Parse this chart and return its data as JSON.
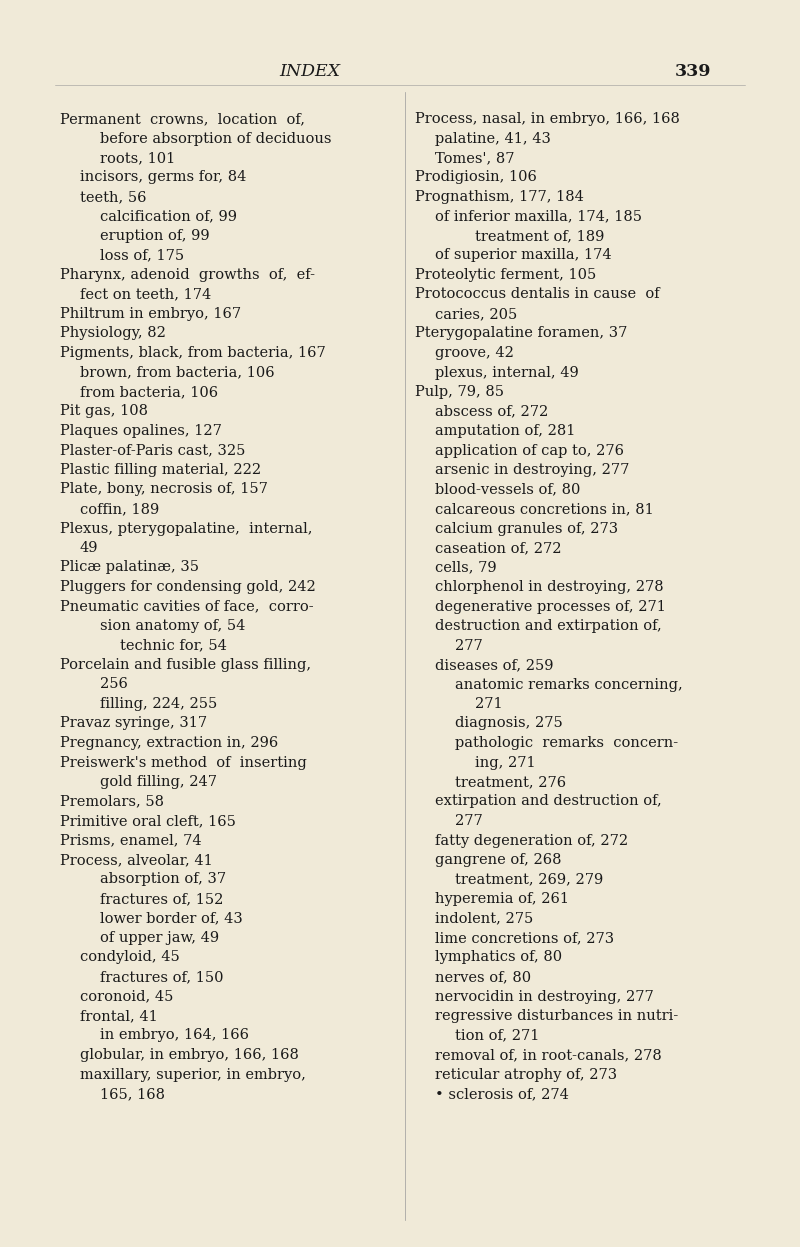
{
  "background_color": "#f0ead8",
  "title": "INDEX",
  "page_number": "339",
  "title_fontsize": 12.5,
  "body_fontsize": 10.5,
  "left_lines": [
    {
      "text": "Permanent  crowns,  location  of,",
      "indent": 0
    },
    {
      "text": "before absorption of deciduous",
      "indent": 2
    },
    {
      "text": "roots, 101",
      "indent": 2
    },
    {
      "text": "incisors, germs for, 84",
      "indent": 1
    },
    {
      "text": "teeth, 56",
      "indent": 1
    },
    {
      "text": "calcification of, 99",
      "indent": 2
    },
    {
      "text": "eruption of, 99",
      "indent": 2
    },
    {
      "text": "loss of, 175",
      "indent": 2
    },
    {
      "text": "Pharynx, adenoid  growths  of,  ef-",
      "indent": 0
    },
    {
      "text": "fect on teeth, 174",
      "indent": 1
    },
    {
      "text": "Philtrum in embryo, 167",
      "indent": 0
    },
    {
      "text": "Physiology, 82",
      "indent": 0
    },
    {
      "text": "Pigments, black, from bacteria, 167",
      "indent": 0
    },
    {
      "text": "brown, from bacteria, 106",
      "indent": 1
    },
    {
      "text": "from bacteria, 106",
      "indent": 1
    },
    {
      "text": "Pit gas, 108",
      "indent": 0
    },
    {
      "text": "Plaques opalines, 127",
      "indent": 0
    },
    {
      "text": "Plaster-of-Paris cast, 325",
      "indent": 0
    },
    {
      "text": "Plastic filling material, 222",
      "indent": 0
    },
    {
      "text": "Plate, bony, necrosis of, 157",
      "indent": 0
    },
    {
      "text": "coffin, 189",
      "indent": 1
    },
    {
      "text": "Plexus, pterygopalatine,  internal,",
      "indent": 0
    },
    {
      "text": "49",
      "indent": 1
    },
    {
      "text": "Plicæ palatinæ, 35",
      "indent": 0
    },
    {
      "text": "Pluggers for condensing gold, 242",
      "indent": 0
    },
    {
      "text": "Pneumatic cavities of face,  corro-",
      "indent": 0
    },
    {
      "text": "sion anatomy of, 54",
      "indent": 2
    },
    {
      "text": "technic for, 54",
      "indent": 3
    },
    {
      "text": "Porcelain and fusible glass filling,",
      "indent": 0
    },
    {
      "text": "256",
      "indent": 2
    },
    {
      "text": "filling, 224, 255",
      "indent": 2
    },
    {
      "text": "Pravaz syringe, 317",
      "indent": 0
    },
    {
      "text": "Pregnancy, extraction in, 296",
      "indent": 0
    },
    {
      "text": "Preiswerk's method  of  inserting",
      "indent": 0
    },
    {
      "text": "gold filling, 247",
      "indent": 2
    },
    {
      "text": "Premolars, 58",
      "indent": 0
    },
    {
      "text": "Primitive oral cleft, 165",
      "indent": 0
    },
    {
      "text": "Prisms, enamel, 74",
      "indent": 0
    },
    {
      "text": "Process, alveolar, 41",
      "indent": 0
    },
    {
      "text": "absorption of, 37",
      "indent": 2
    },
    {
      "text": "fractures of, 152",
      "indent": 2
    },
    {
      "text": "lower border of, 43",
      "indent": 2
    },
    {
      "text": "of upper jaw, 49",
      "indent": 2
    },
    {
      "text": "condyloid, 45",
      "indent": 1
    },
    {
      "text": "fractures of, 150",
      "indent": 2
    },
    {
      "text": "coronoid, 45",
      "indent": 1
    },
    {
      "text": "frontal, 41",
      "indent": 1
    },
    {
      "text": "in embryo, 164, 166",
      "indent": 2
    },
    {
      "text": "globular, in embryo, 166, 168",
      "indent": 1
    },
    {
      "text": "maxillary, superior, in embryo,",
      "indent": 1
    },
    {
      "text": "165, 168",
      "indent": 2
    }
  ],
  "right_lines": [
    {
      "text": "Process, nasal, in embryo, 166, 168",
      "indent": 0
    },
    {
      "text": "palatine, 41, 43",
      "indent": 1
    },
    {
      "text": "Tomes', 87",
      "indent": 1
    },
    {
      "text": "Prodigiosin, 106",
      "indent": 0
    },
    {
      "text": "Prognathism, 177, 184",
      "indent": 0
    },
    {
      "text": "of inferior maxilla, 174, 185",
      "indent": 1
    },
    {
      "text": "treatment of, 189",
      "indent": 3
    },
    {
      "text": "of superior maxilla, 174",
      "indent": 1
    },
    {
      "text": "Proteolytic ferment, 105",
      "indent": 0
    },
    {
      "text": "Protococcus dentalis in cause  of",
      "indent": 0
    },
    {
      "text": "caries, 205",
      "indent": 1
    },
    {
      "text": "Pterygopalatine foramen, 37",
      "indent": 0
    },
    {
      "text": "groove, 42",
      "indent": 1
    },
    {
      "text": "plexus, internal, 49",
      "indent": 1
    },
    {
      "text": "Pulp, 79, 85",
      "indent": 0
    },
    {
      "text": "abscess of, 272",
      "indent": 1
    },
    {
      "text": "amputation of, 281",
      "indent": 1
    },
    {
      "text": "application of cap to, 276",
      "indent": 1
    },
    {
      "text": "arsenic in destroying, 277",
      "indent": 1
    },
    {
      "text": "blood-vessels of, 80",
      "indent": 1
    },
    {
      "text": "calcareous concretions in, 81",
      "indent": 1
    },
    {
      "text": "calcium granules of, 273",
      "indent": 1
    },
    {
      "text": "caseation of, 272",
      "indent": 1
    },
    {
      "text": "cells, 79",
      "indent": 1
    },
    {
      "text": "chlorphenol in destroying, 278",
      "indent": 1
    },
    {
      "text": "degenerative processes of, 271",
      "indent": 1
    },
    {
      "text": "destruction and extirpation of,",
      "indent": 1
    },
    {
      "text": "277",
      "indent": 2
    },
    {
      "text": "diseases of, 259",
      "indent": 1
    },
    {
      "text": "anatomic remarks concerning,",
      "indent": 2
    },
    {
      "text": "271",
      "indent": 3
    },
    {
      "text": "diagnosis, 275",
      "indent": 2
    },
    {
      "text": "pathologic  remarks  concern-",
      "indent": 2
    },
    {
      "text": "ing, 271",
      "indent": 3
    },
    {
      "text": "treatment, 276",
      "indent": 2
    },
    {
      "text": "extirpation and destruction of,",
      "indent": 1
    },
    {
      "text": "277",
      "indent": 2
    },
    {
      "text": "fatty degeneration of, 272",
      "indent": 1
    },
    {
      "text": "gangrene of, 268",
      "indent": 1
    },
    {
      "text": "treatment, 269, 279",
      "indent": 2
    },
    {
      "text": "hyperemia of, 261",
      "indent": 1
    },
    {
      "text": "indolent, 275",
      "indent": 1
    },
    {
      "text": "lime concretions of, 273",
      "indent": 1
    },
    {
      "text": "lymphatics of, 80",
      "indent": 1
    },
    {
      "text": "nerves of, 80",
      "indent": 1
    },
    {
      "text": "nervocidin in destroying, 277",
      "indent": 1
    },
    {
      "text": "regressive disturbances in nutri-",
      "indent": 1
    },
    {
      "text": "tion of, 271",
      "indent": 2
    },
    {
      "text": "removal of, in root-canals, 278",
      "indent": 1
    },
    {
      "text": "reticular atrophy of, 273",
      "indent": 1
    },
    {
      "text": "• sclerosis of, 274",
      "indent": 1
    }
  ]
}
